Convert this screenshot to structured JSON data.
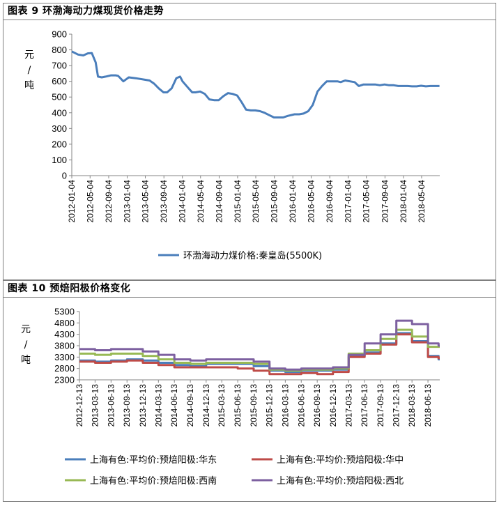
{
  "chart_data": [
    {
      "type": "line",
      "panel_title": "图表 9 环渤海动力煤现货价格走势",
      "ylabel": "元/吨",
      "ylim": [
        0,
        900
      ],
      "yticks": [
        0,
        100,
        200,
        300,
        400,
        500,
        600,
        700,
        800,
        900
      ],
      "x_tick_labels": [
        "2012-01-04",
        "2012-05-04",
        "2012-09-04",
        "2013-01-04",
        "2013-05-04",
        "2013-09-04",
        "2014-01-04",
        "2014-05-04",
        "2014-09-04",
        "2015-01-04",
        "2015-05-04",
        "2015-09-04",
        "2016-01-04",
        "2016-05-04",
        "2016-09-04",
        "2017-01-04",
        "2017-05-04",
        "2017-09-04",
        "2018-01-04",
        "2018-05-04"
      ],
      "grid": false,
      "legend_position": "bottom",
      "series": [
        {
          "name": "环渤海动力煤价格:秦皇岛(5500K)",
          "color": "#4a7ebb",
          "x": [
            "2012-01-04",
            "2012-02-15",
            "2012-03-20",
            "2012-04-20",
            "2012-05-15",
            "2012-06-10",
            "2012-06-25",
            "2012-07-20",
            "2012-08-15",
            "2012-09-20",
            "2012-10-20",
            "2012-11-05",
            "2012-11-15",
            "2012-12-10",
            "2013-01-15",
            "2013-03-01",
            "2013-05-01",
            "2013-06-01",
            "2013-07-01",
            "2013-08-01",
            "2013-09-01",
            "2013-09-25",
            "2013-10-25",
            "2013-11-25",
            "2013-12-20",
            "2014-01-05",
            "2014-02-10",
            "2014-03-10",
            "2014-04-01",
            "2014-05-01",
            "2014-06-01",
            "2014-07-01",
            "2014-08-01",
            "2014-09-01",
            "2014-10-01",
            "2014-11-01",
            "2014-12-01",
            "2015-01-01",
            "2015-02-01",
            "2015-03-01",
            "2015-04-01",
            "2015-05-01",
            "2015-06-01",
            "2015-07-01",
            "2015-08-01",
            "2015-09-01",
            "2015-10-01",
            "2015-11-01",
            "2015-12-01",
            "2016-01-15",
            "2016-02-15",
            "2016-03-15",
            "2016-04-15",
            "2016-05-15",
            "2016-06-15",
            "2016-07-15",
            "2016-08-15",
            "2016-09-10",
            "2016-10-01",
            "2016-10-25",
            "2016-11-15",
            "2016-12-15",
            "2017-01-15",
            "2017-02-15",
            "2017-03-15",
            "2017-04-15",
            "2017-05-10",
            "2017-06-10",
            "2017-07-01",
            "2017-08-01",
            "2017-09-01",
            "2017-10-01",
            "2017-11-01",
            "2017-12-01",
            "2018-01-01",
            "2018-02-01",
            "2018-03-01",
            "2018-04-01",
            "2018-05-01",
            "2018-06-01",
            "2018-07-01",
            "2018-08-01",
            "2018-08-30"
          ],
          "values": [
            790,
            770,
            765,
            778,
            780,
            720,
            630,
            625,
            630,
            638,
            638,
            635,
            625,
            600,
            625,
            620,
            610,
            605,
            585,
            555,
            530,
            530,
            555,
            620,
            630,
            600,
            560,
            530,
            530,
            535,
            520,
            485,
            480,
            480,
            505,
            525,
            520,
            510,
            465,
            420,
            415,
            415,
            410,
            400,
            385,
            370,
            370,
            370,
            380,
            390,
            390,
            395,
            410,
            450,
            535,
            570,
            600,
            600,
            600,
            600,
            595,
            605,
            600,
            595,
            570,
            580,
            580,
            580,
            580,
            575,
            580,
            575,
            575,
            570,
            570,
            570,
            568,
            568,
            572,
            568,
            570,
            570,
            570
          ]
        }
      ]
    },
    {
      "type": "line",
      "panel_title": "图表 10 预焙阳极价格变化",
      "ylabel": "元/吨",
      "ylim": [
        2300,
        5300
      ],
      "yticks": [
        2300,
        2800,
        3300,
        3800,
        4300,
        4800,
        5300
      ],
      "x_tick_labels": [
        "2012-12-13",
        "2013-03-13",
        "2013-06-13",
        "2013-09-13",
        "2013-12-13",
        "2014-03-13",
        "2014-06-13",
        "2014-09-13",
        "2014-12-13",
        "2015-03-13",
        "2015-06-13",
        "2015-09-13",
        "2015-12-13",
        "2016-03-13",
        "2016-06-13",
        "2016-09-13",
        "2016-12-13",
        "2017-03-13",
        "2017-06-13",
        "2017-09-13",
        "2017-12-13",
        "2018-03-13",
        "2018-06-13"
      ],
      "grid": false,
      "legend_position": "bottom",
      "x": [
        "2012-12-13",
        "2013-03-13",
        "2013-06-13",
        "2013-09-13",
        "2013-12-13",
        "2014-03-13",
        "2014-06-13",
        "2014-09-13",
        "2014-12-13",
        "2015-03-13",
        "2015-06-13",
        "2015-09-13",
        "2015-12-13",
        "2016-03-13",
        "2016-06-13",
        "2016-09-13",
        "2016-12-13",
        "2017-03-13",
        "2017-06-13",
        "2017-09-13",
        "2017-12-13",
        "2018-03-13",
        "2018-06-13",
        "2018-08-13"
      ],
      "series": [
        {
          "name": "上海有色:平均价:预焙阳极:华东",
          "color": "#4a7ebb",
          "values": [
            3150,
            3100,
            3150,
            3200,
            3150,
            3050,
            2950,
            2900,
            3000,
            3000,
            3000,
            2900,
            2700,
            2650,
            2700,
            2700,
            2750,
            3350,
            3500,
            3900,
            4350,
            4000,
            3350,
            3200
          ]
        },
        {
          "name": "上海有色:平均价:预焙阳极:华中",
          "color": "#be4b48",
          "values": [
            3100,
            3050,
            3100,
            3150,
            3050,
            2950,
            2850,
            2850,
            2850,
            2850,
            2800,
            2700,
            2550,
            2550,
            2600,
            2550,
            2650,
            3300,
            3450,
            3850,
            4300,
            3950,
            3300,
            3250
          ]
        },
        {
          "name": "上海有色:平均价:预焙阳极:西南",
          "color": "#98b954",
          "values": [
            3450,
            3400,
            3450,
            3450,
            3350,
            3200,
            3050,
            3000,
            3050,
            3050,
            3050,
            3000,
            2750,
            2700,
            2750,
            2750,
            2800,
            3450,
            3600,
            4100,
            4500,
            4200,
            3750,
            3750
          ]
        },
        {
          "name": "上海有色:平均价:预焙阳极:西北",
          "color": "#7d60a0",
          "values": [
            3650,
            3600,
            3650,
            3650,
            3550,
            3400,
            3200,
            3150,
            3200,
            3200,
            3200,
            3100,
            2800,
            2750,
            2800,
            2800,
            2850,
            3400,
            3900,
            4300,
            4900,
            4750,
            3900,
            3800
          ]
        }
      ]
    }
  ]
}
